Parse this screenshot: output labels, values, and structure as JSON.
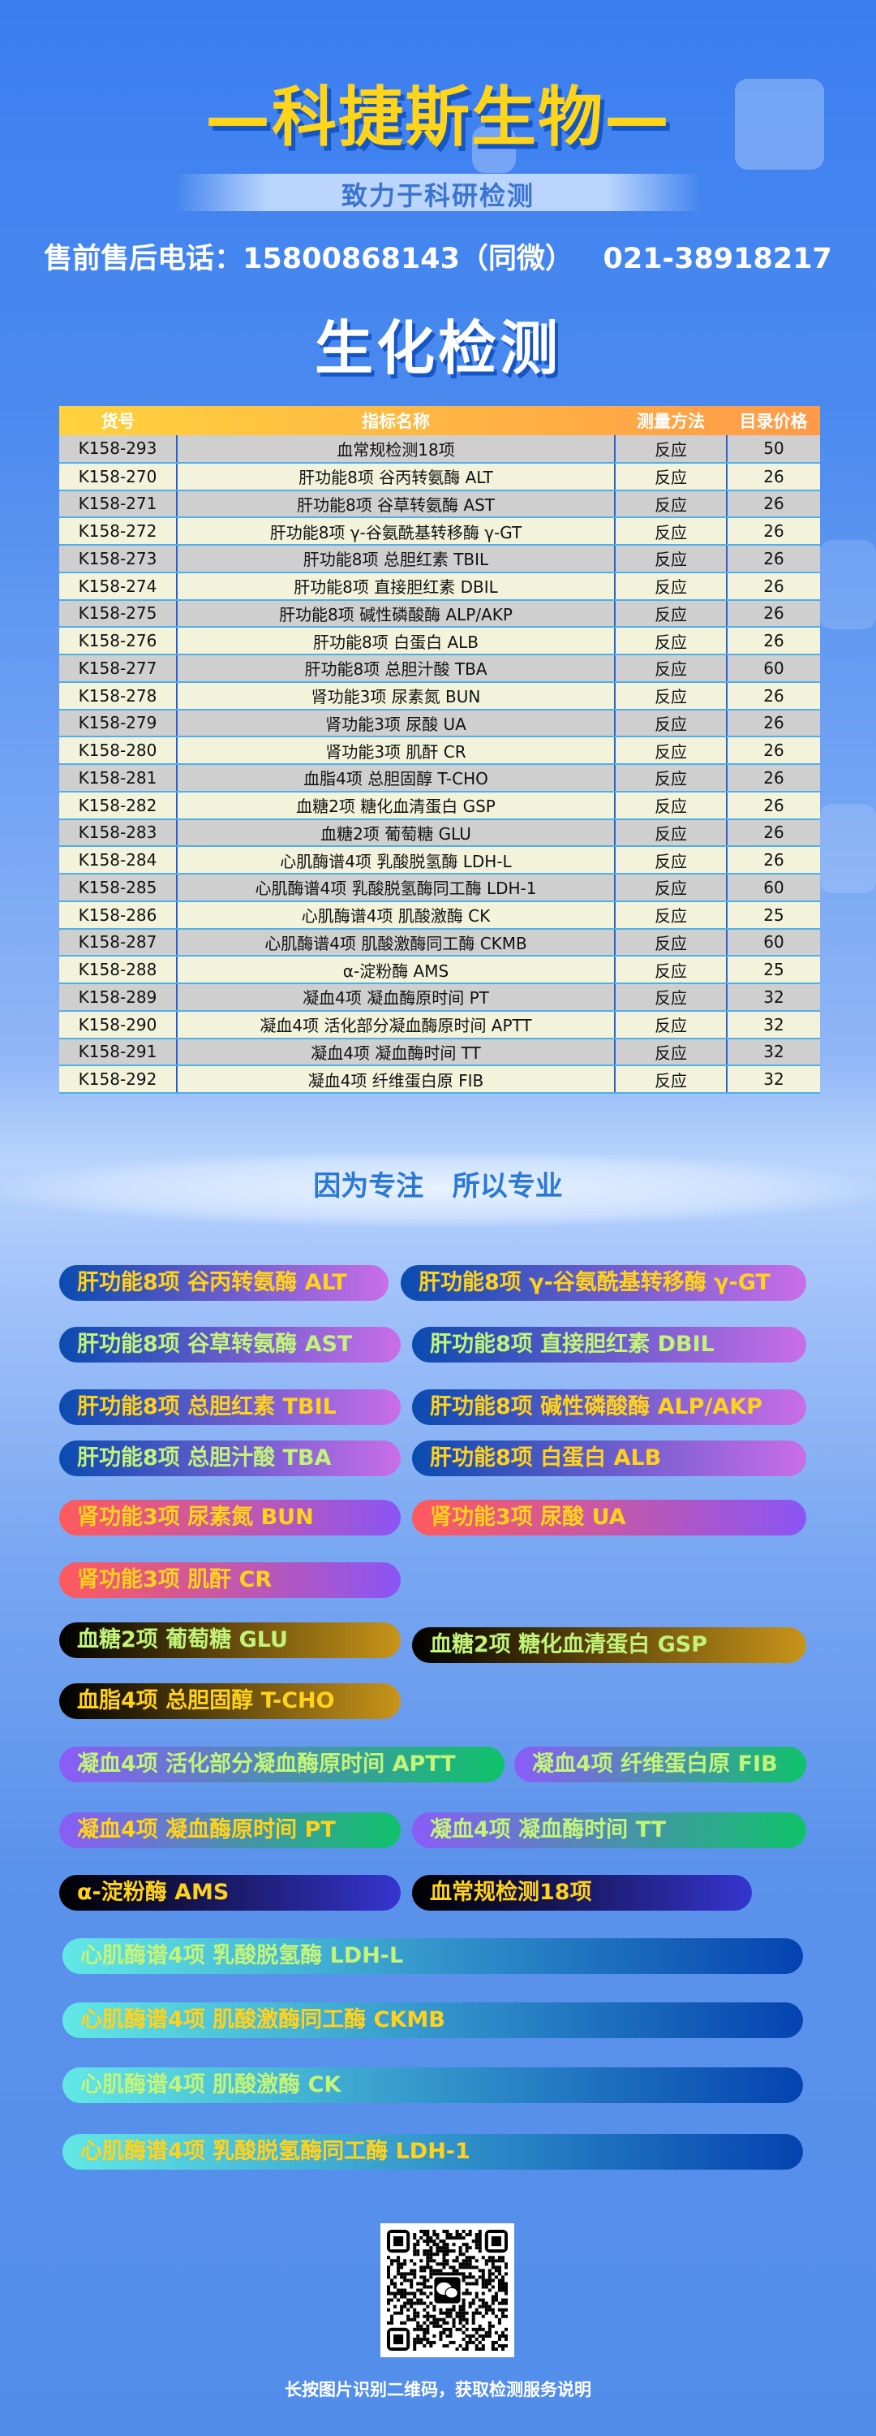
{
  "brand": "—科捷斯生物—",
  "slogan": "致力于科研检测",
  "phone_line": "售前售后电话：15800868143（同微）   021-38918217",
  "section_title": "生化检测",
  "table": {
    "headers": [
      "货号",
      "指标名称",
      "测量方法",
      "目录价格"
    ],
    "rows": [
      [
        "K158-293",
        "血常规检测18项",
        "反应",
        "50"
      ],
      [
        "K158-270",
        "肝功能8项 谷丙转氨酶 ALT",
        "反应",
        "26"
      ],
      [
        "K158-271",
        "肝功能8项 谷草转氨酶 AST",
        "反应",
        "26"
      ],
      [
        "K158-272",
        "肝功能8项 γ-谷氨酰基转移酶 γ-GT",
        "反应",
        "26"
      ],
      [
        "K158-273",
        "肝功能8项 总胆红素 TBIL",
        "反应",
        "26"
      ],
      [
        "K158-274",
        "肝功能8项 直接胆红素 DBIL",
        "反应",
        "26"
      ],
      [
        "K158-275",
        "肝功能8项 碱性磷酸酶 ALP/AKP",
        "反应",
        "26"
      ],
      [
        "K158-276",
        "肝功能8项 白蛋白 ALB",
        "反应",
        "26"
      ],
      [
        "K158-277",
        "肝功能8项 总胆汁酸 TBA",
        "反应",
        "60"
      ],
      [
        "K158-278",
        "肾功能3项 尿素氮 BUN",
        "反应",
        "26"
      ],
      [
        "K158-279",
        "肾功能3项 尿酸 UA",
        "反应",
        "26"
      ],
      [
        "K158-280",
        "肾功能3项 肌酐 CR",
        "反应",
        "26"
      ],
      [
        "K158-281",
        "血脂4项 总胆固醇 T-CHO",
        "反应",
        "26"
      ],
      [
        "K158-282",
        "血糖2项 糖化血清蛋白 GSP",
        "反应",
        "26"
      ],
      [
        "K158-283",
        "血糖2项 葡萄糖 GLU",
        "反应",
        "26"
      ],
      [
        "K158-284",
        "心肌酶谱4项 乳酸脱氢酶 LDH-L",
        "反应",
        "26"
      ],
      [
        "K158-285",
        "心肌酶谱4项 乳酸脱氢酶同工酶 LDH-1",
        "反应",
        "60"
      ],
      [
        "K158-286",
        "心肌酶谱4项 肌酸激酶 CK",
        "反应",
        "25"
      ],
      [
        "K158-287",
        "心肌酶谱4项 肌酸激酶同工酶 CKMB",
        "反应",
        "60"
      ],
      [
        "K158-288",
        "α-淀粉酶 AMS",
        "反应",
        "25"
      ],
      [
        "K158-289",
        "凝血4项 凝血酶原时间 PT",
        "反应",
        "32"
      ],
      [
        "K158-290",
        "凝血4项 活化部分凝血酶原时间 APTT",
        "反应",
        "32"
      ],
      [
        "K158-291",
        "凝血4项 凝血酶时间 TT",
        "反应",
        "32"
      ],
      [
        "K158-292",
        "凝血4项 纤维蛋白原 FIB",
        "反应",
        "32"
      ]
    ]
  },
  "motto": "因为专注   所以专业",
  "colors": {
    "yellow_text": "#ffd21c",
    "green_text": "#c2f47a",
    "liver": [
      "#0a4bb0",
      "#c96ee8"
    ],
    "kidney": [
      "#ff5a5c",
      "#8a55f5"
    ],
    "sugar": [
      "#000000",
      "#c8951a"
    ],
    "coag": [
      "#8a5cf7",
      "#0fc26a"
    ],
    "blood": [
      "#000000",
      "#3535d0"
    ],
    "heart": [
      "#62e8e6",
      "#0443b0"
    ]
  },
  "tags": [
    {
      "label": "肝功能8项 谷丙转氨酶 ALT",
      "group": "liver",
      "text": "yellow_text"
    },
    {
      "label": "肝功能8项 γ-谷氨酰基转移酶 γ-GT",
      "group": "liver",
      "text": "yellow_text"
    },
    {
      "label": "肝功能8项 谷草转氨酶 AST",
      "group": "liver",
      "text": "green_text"
    },
    {
      "label": "肝功能8项 直接胆红素 DBIL",
      "group": "liver",
      "text": "green_text"
    },
    {
      "label": "肝功能8项 总胆红素 TBIL",
      "group": "liver",
      "text": "yellow_text"
    },
    {
      "label": "肝功能8项 碱性磷酸酶 ALP/AKP",
      "group": "liver",
      "text": "yellow_text"
    },
    {
      "label": "肝功能8项 总胆汁酸 TBA",
      "group": "liver",
      "text": "green_text"
    },
    {
      "label": "肝功能8项 白蛋白 ALB",
      "group": "liver",
      "text": "yellow_text"
    },
    {
      "label": "肾功能3项 尿素氮 BUN",
      "group": "kidney",
      "text": "yellow_text"
    },
    {
      "label": "肾功能3项 尿酸 UA",
      "group": "kidney",
      "text": "yellow_text"
    },
    {
      "label": "肾功能3项 肌酐 CR",
      "group": "kidney",
      "text": "yellow_text"
    },
    {
      "label": "血糖2项 葡萄糖 GLU",
      "group": "sugar",
      "text": "green_text"
    },
    {
      "label": "血糖2项 糖化血清蛋白 GSP",
      "group": "sugar",
      "text": "green_text"
    },
    {
      "label": "血脂4项 总胆固醇 T-CHO",
      "group": "sugar",
      "text": "yellow_text"
    },
    {
      "label": "凝血4项 活化部分凝血酶原时间 APTT",
      "group": "coag",
      "text": "green_text"
    },
    {
      "label": "凝血4项 纤维蛋白原 FIB",
      "group": "coag",
      "text": "green_text"
    },
    {
      "label": "凝血4项 凝血酶原时间 PT",
      "group": "coag",
      "text": "yellow_text"
    },
    {
      "label": "凝血4项 凝血酶时间 TT",
      "group": "coag",
      "text": "green_text"
    },
    {
      "label": "α-淀粉酶 AMS",
      "group": "blood",
      "text": "yellow_text"
    },
    {
      "label": "血常规检测18项",
      "group": "blood",
      "text": "yellow_text"
    },
    {
      "label": "心肌酶谱4项 乳酸脱氢酶 LDH-L",
      "group": "heart",
      "text": "green_text"
    },
    {
      "label": "心肌酶谱4项 肌酸激酶同工酶 CKMB",
      "group": "heart",
      "text": "yellow_text"
    },
    {
      "label": "心肌酶谱4项 肌酸激酶 CK",
      "group": "heart",
      "text": "green_text"
    },
    {
      "label": "心肌酶谱4项 乳酸脱氢酶同工酶 LDH-1",
      "group": "heart",
      "text": "yellow_text"
    }
  ],
  "qr": {
    "icon": "wechat-icon"
  },
  "qr_caption": "长按图片识别二维码，获取检测服务说明"
}
